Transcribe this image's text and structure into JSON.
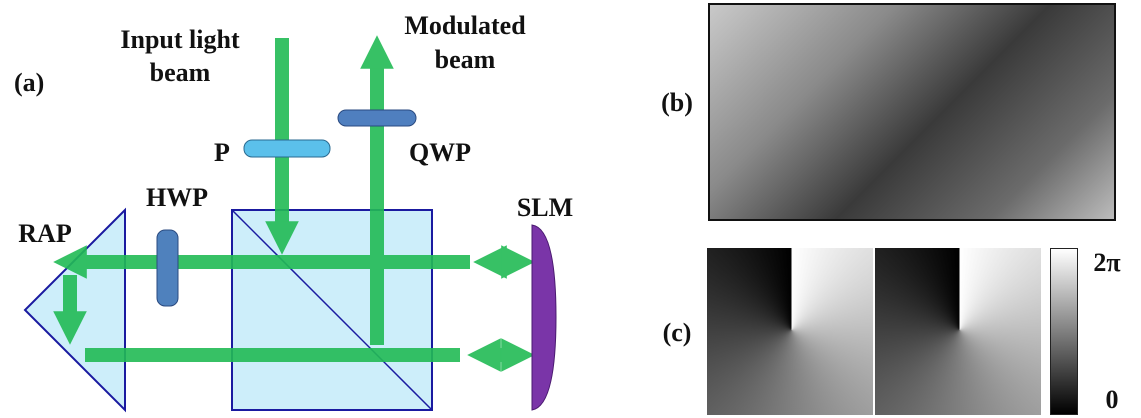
{
  "panel_a": {
    "label": "(a)",
    "input_beam": [
      "Input light",
      "beam"
    ],
    "modulated_beam": [
      "Modulated",
      "beam"
    ],
    "polarizer": "P",
    "qwp": "QWP",
    "hwp": "HWP",
    "rap": "RAP",
    "slm": "SLM"
  },
  "panel_b": {
    "label": "(b)"
  },
  "panel_c": {
    "label": "(c)",
    "colorbar_max": "2π",
    "colorbar_min": "0"
  }
}
